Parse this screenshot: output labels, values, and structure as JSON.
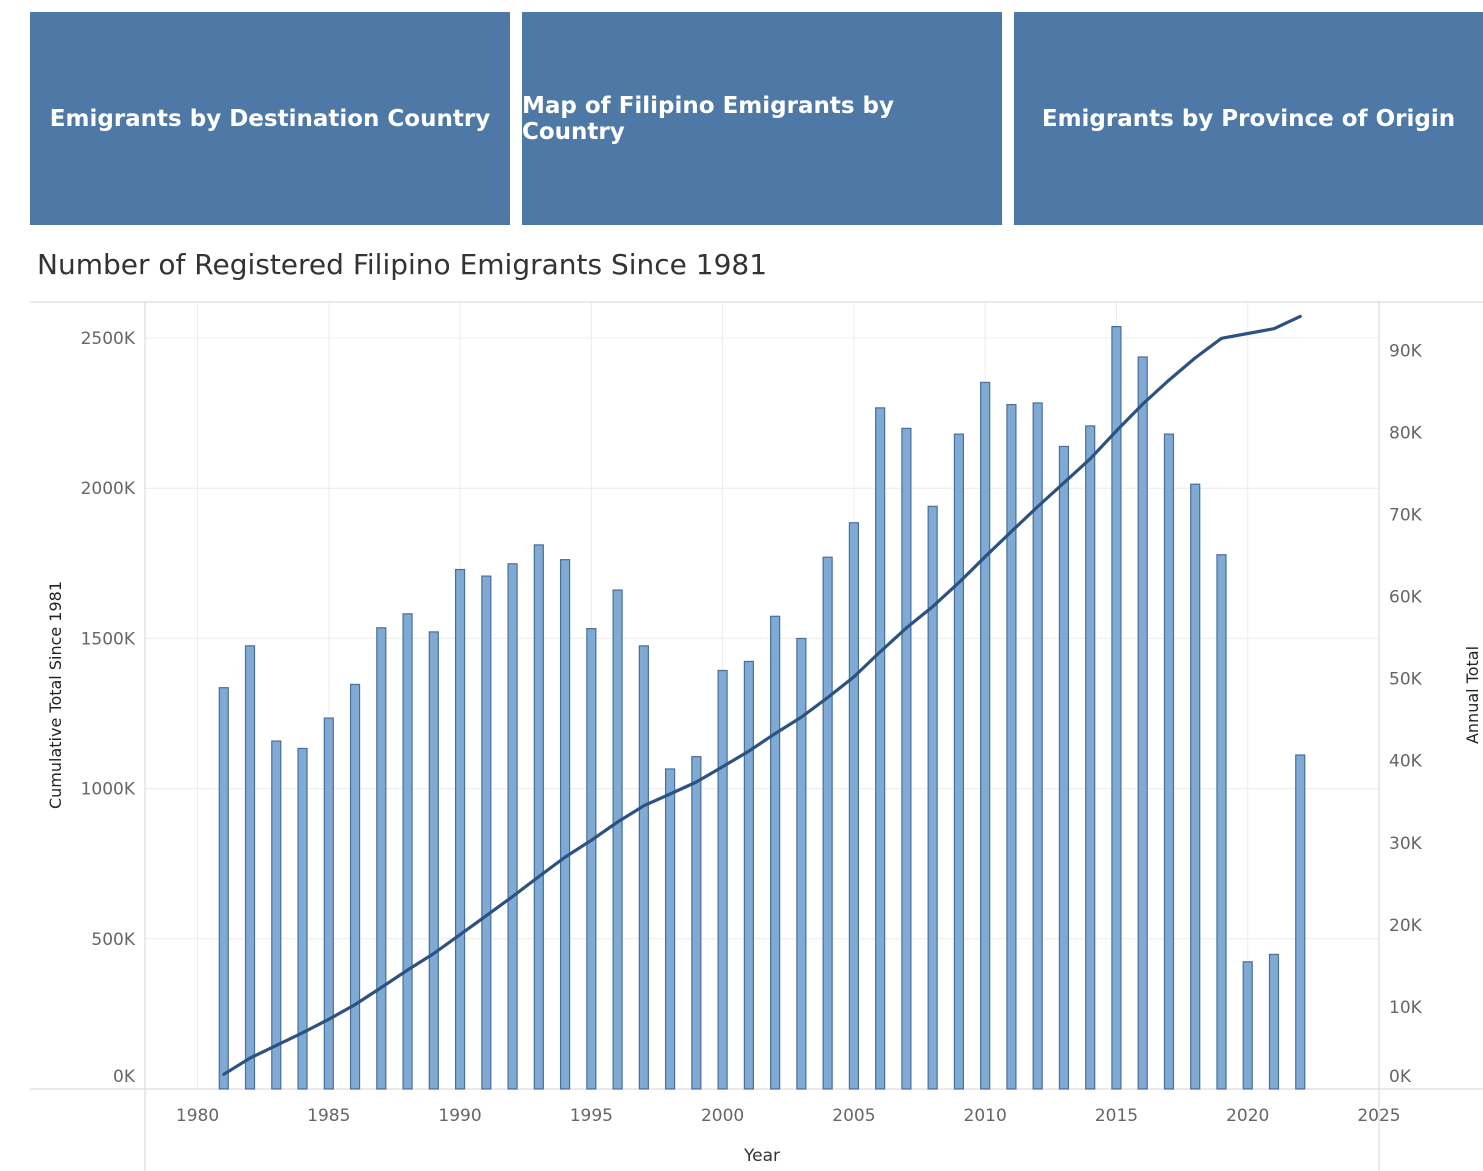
{
  "nav": {
    "buttons": [
      {
        "label": "Emigrants by Destination Country"
      },
      {
        "label": "Map of Filipino Emigrants by Country"
      },
      {
        "label": "Emigrants by Province of Origin"
      }
    ]
  },
  "chart_data": {
    "type": "bar",
    "title": "Number of Registered Filipino Emigrants Since 1981",
    "xlabel": "Year",
    "ylabel_left": "Cumulative Total Since 1981",
    "ylabel_right": "Annual Total",
    "x_ticks": [
      "1980",
      "1985",
      "1990",
      "1995",
      "2000",
      "2005",
      "2010",
      "2015",
      "2020",
      "2025"
    ],
    "left_ticks": [
      {
        "v": 0,
        "label": "0K"
      },
      {
        "v": 500,
        "label": "500K"
      },
      {
        "v": 1000,
        "label": "1000K"
      },
      {
        "v": 1500,
        "label": "1500K"
      },
      {
        "v": 2000,
        "label": "2000K"
      },
      {
        "v": 2500,
        "label": "2500K"
      }
    ],
    "right_ticks": [
      {
        "v": 0,
        "label": "0K"
      },
      {
        "v": 10,
        "label": "10K"
      },
      {
        "v": 20,
        "label": "20K"
      },
      {
        "v": 30,
        "label": "30K"
      },
      {
        "v": 40,
        "label": "40K"
      },
      {
        "v": 50,
        "label": "50K"
      },
      {
        "v": 60,
        "label": "60K"
      },
      {
        "v": 70,
        "label": "70K"
      },
      {
        "v": 80,
        "label": "80K"
      },
      {
        "v": 90,
        "label": "90K"
      }
    ],
    "xlim": [
      1978,
      2025
    ],
    "ylim_left_k": [
      0,
      2620
    ],
    "ylim_right_k": [
      0,
      95.9
    ],
    "grid": true,
    "colors": {
      "bar_fill": "#7eaad4",
      "bar_stroke": "#4a6f99",
      "line": "#2c5282"
    },
    "series": [
      {
        "name": "Annual Total",
        "kind": "bar",
        "axis": "right",
        "x": [
          1981,
          1982,
          1983,
          1984,
          1985,
          1986,
          1987,
          1988,
          1989,
          1990,
          1991,
          1992,
          1993,
          1994,
          1995,
          1996,
          1997,
          1998,
          1999,
          2000,
          2001,
          2002,
          2003,
          2004,
          2005,
          2006,
          2007,
          2008,
          2009,
          2010,
          2011,
          2012,
          2013,
          2014,
          2015,
          2016,
          2017,
          2018,
          2019,
          2020,
          2021,
          2022
        ],
        "values_k": [
          48.9,
          54.0,
          42.4,
          41.5,
          45.2,
          49.3,
          56.2,
          57.9,
          55.7,
          63.3,
          62.5,
          64.0,
          66.3,
          64.5,
          56.1,
          60.8,
          54.0,
          39.0,
          40.5,
          51.0,
          52.1,
          57.6,
          54.9,
          64.8,
          69.0,
          83.0,
          80.5,
          71.0,
          79.8,
          86.1,
          83.4,
          83.6,
          78.3,
          80.8,
          92.9,
          89.2,
          79.8,
          73.7,
          65.1,
          15.5,
          16.4,
          40.7
        ]
      },
      {
        "name": "Cumulative Total Since 1981",
        "kind": "line",
        "axis": "left",
        "x": [
          1981,
          1982,
          1983,
          1984,
          1985,
          1986,
          1987,
          1988,
          1989,
          1990,
          1991,
          1992,
          1993,
          1994,
          1995,
          1996,
          1997,
          1998,
          1999,
          2000,
          2001,
          2002,
          2003,
          2004,
          2005,
          2006,
          2007,
          2008,
          2009,
          2010,
          2011,
          2012,
          2013,
          2014,
          2015,
          2016,
          2017,
          2018,
          2019,
          2020,
          2021,
          2022
        ],
        "values_k": [
          49,
          103,
          145,
          187,
          232,
          281,
          338,
          396,
          451,
          514,
          577,
          641,
          707,
          772,
          828,
          889,
          943,
          982,
          1022,
          1073,
          1125,
          1183,
          1238,
          1303,
          1372,
          1455,
          1535,
          1606,
          1686,
          1772,
          1856,
          1939,
          2018,
          2098,
          2191,
          2280,
          2360,
          2434,
          2499,
          2515,
          2531,
          2572
        ]
      }
    ]
  }
}
